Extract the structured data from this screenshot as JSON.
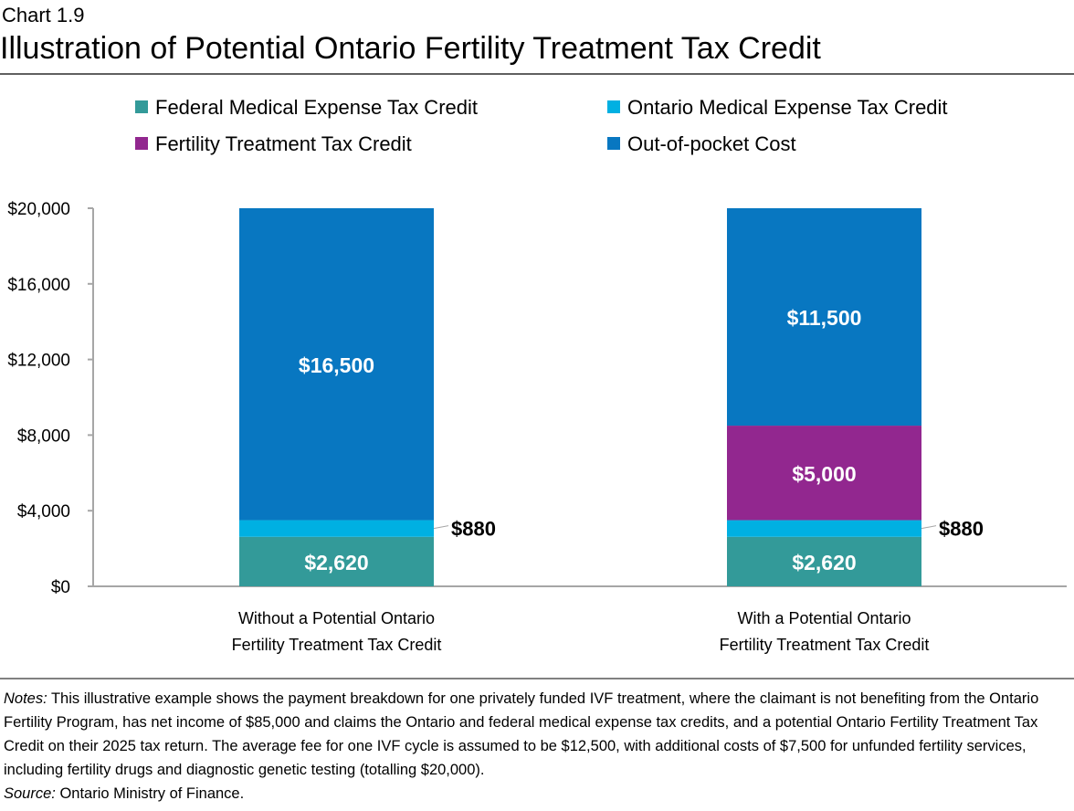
{
  "header": {
    "chart_number": "Chart 1.9",
    "title": "Illustration of Potential Ontario Fertility Treatment Tax Credit"
  },
  "chart_data": {
    "type": "bar",
    "stacked": true,
    "categories": [
      [
        "Without a Potential Ontario",
        "Fertility Treatment Tax Credit"
      ],
      [
        "With a Potential Ontario",
        "Fertility Treatment Tax Credit"
      ]
    ],
    "series": [
      {
        "name": "Federal Medical Expense Tax Credit",
        "color": "#339a99",
        "values": [
          2620,
          2620
        ],
        "labels": [
          "$2,620",
          "$2,620"
        ]
      },
      {
        "name": "Ontario Medical Expense Tax Credit",
        "color": "#00b0e2",
        "values": [
          880,
          880
        ],
        "labels": [
          "$880",
          "$880"
        ]
      },
      {
        "name": "Fertility Treatment Tax Credit",
        "color": "#92278f",
        "values": [
          0,
          5000
        ],
        "labels": [
          "",
          "$5,000"
        ]
      },
      {
        "name": "Out-of-pocket Cost",
        "color": "#0877c1",
        "values": [
          16500,
          11500
        ],
        "labels": [
          "$16,500",
          "$11,500"
        ]
      }
    ],
    "legend_order": [
      0,
      1,
      2,
      3
    ],
    "legend_placement": "top",
    "ylim": [
      0,
      20000
    ],
    "yticks": [
      0,
      4000,
      8000,
      12000,
      16000,
      20000
    ],
    "ytick_labels": [
      "$0",
      "$4,000",
      "$8,000",
      "$12,000",
      "$16,000",
      "$20,000"
    ],
    "grid": false,
    "xlabel": "",
    "ylabel": ""
  },
  "notes": {
    "notes_label": "Notes:",
    "notes_text": " This illustrative example shows the payment breakdown for one privately funded IVF treatment, where the claimant is not benefiting from the Ontario Fertility Program, has net income of $85,000 and claims the Ontario and federal medical expense tax credits, and a potential Ontario Fertility Treatment Tax Credit on their 2025 tax return. The average fee for one IVF cycle is assumed to be $12,500, with additional costs of $7,500 for unfunded fertility services, including fertility drugs and diagnostic genetic testing (totalling $20,000).",
    "source_label": "Source:",
    "source_text": " Ontario Ministry of Finance."
  }
}
